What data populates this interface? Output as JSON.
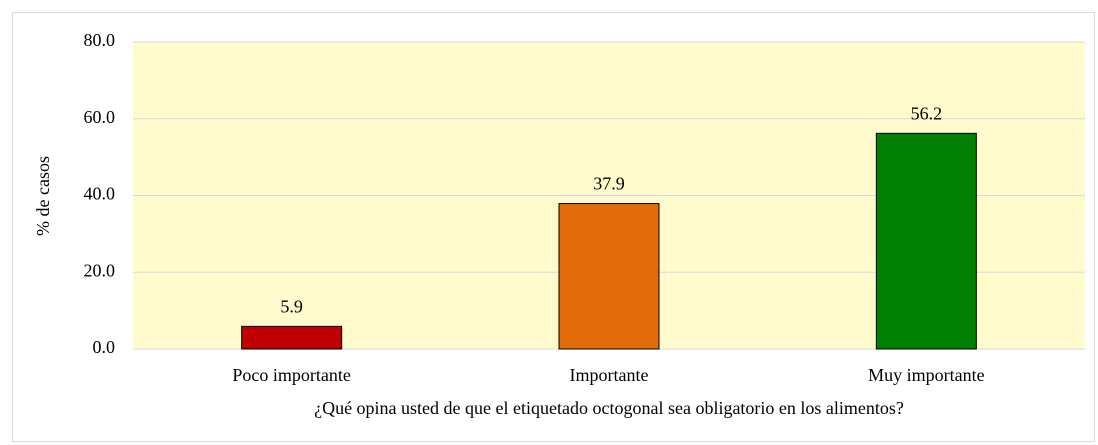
{
  "chart_data": {
    "type": "bar",
    "categories": [
      "Poco importante",
      "Importante",
      "Muy importante"
    ],
    "values": [
      5.9,
      37.9,
      56.2
    ],
    "colors": [
      "#c00000",
      "#e36c09",
      "#008000"
    ],
    "x_label": "¿Qué opina usted de que el etiquetado octogonal sea obligatorio en los alimentos?",
    "y_label": "% de casos",
    "ylim": [
      0,
      80
    ],
    "yticks": [
      {
        "value": 0,
        "label": "0.0"
      },
      {
        "value": 20,
        "label": "20.0"
      },
      {
        "value": 40,
        "label": "40.0"
      },
      {
        "value": 60,
        "label": "60.0"
      },
      {
        "value": 80,
        "label": "80.0"
      }
    ],
    "grid": true
  }
}
